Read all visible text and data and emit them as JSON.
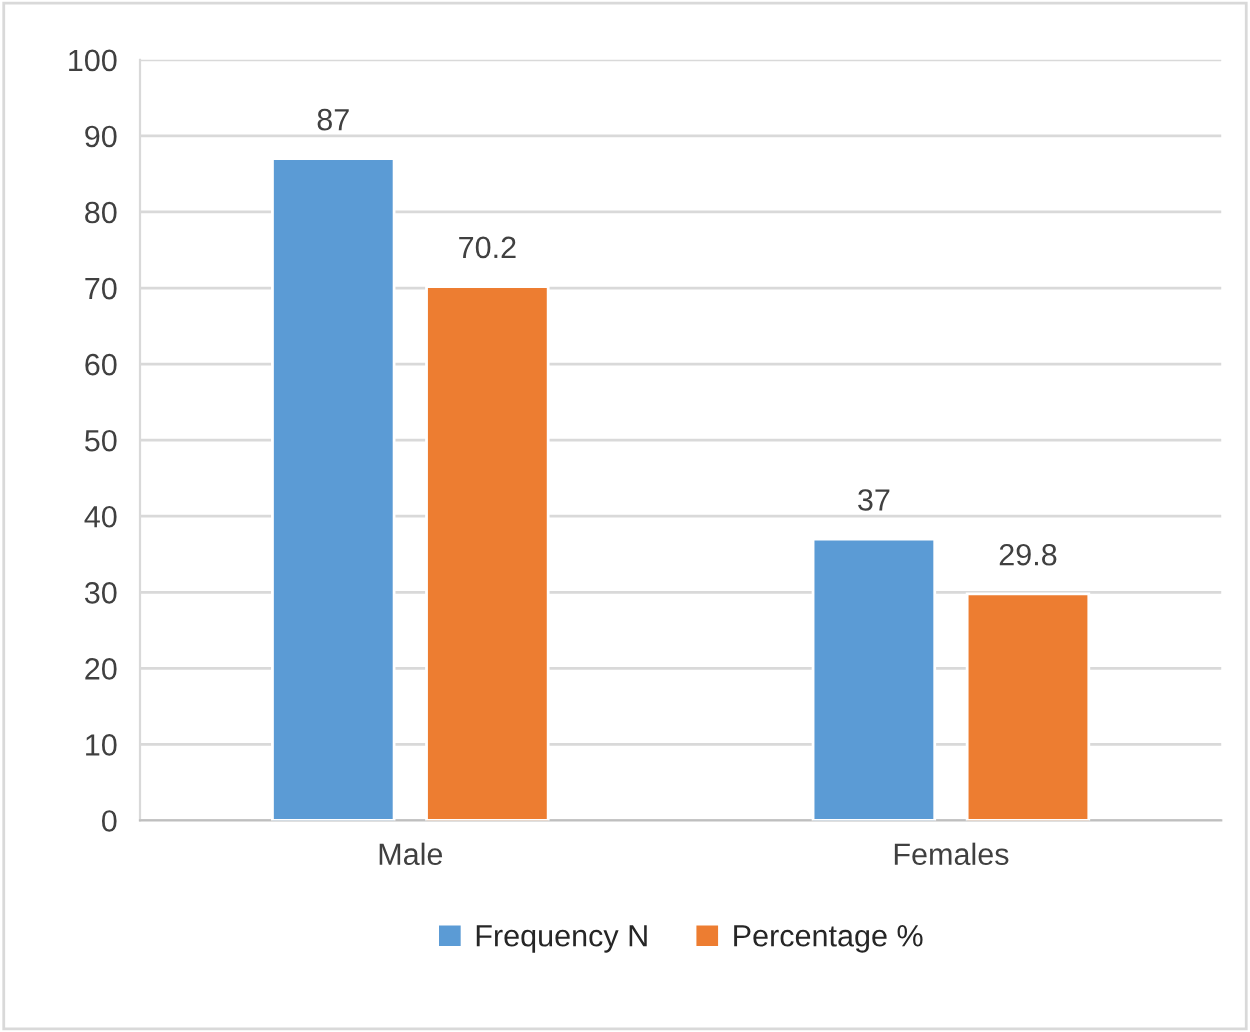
{
  "chart_data": {
    "type": "bar",
    "categories": [
      "Male",
      "Females"
    ],
    "series": [
      {
        "name": "Frequency N",
        "color": "#5b9bd5",
        "values": [
          87,
          37
        ]
      },
      {
        "name": "Percentage %",
        "color": "#ed7d31",
        "values": [
          70.2,
          29.8
        ]
      }
    ],
    "ylim": [
      0,
      100
    ],
    "yticks": [
      0,
      10,
      20,
      30,
      40,
      50,
      60,
      70,
      80,
      90,
      100
    ],
    "grid": "y",
    "legend": "bottom",
    "data_labels": true
  }
}
